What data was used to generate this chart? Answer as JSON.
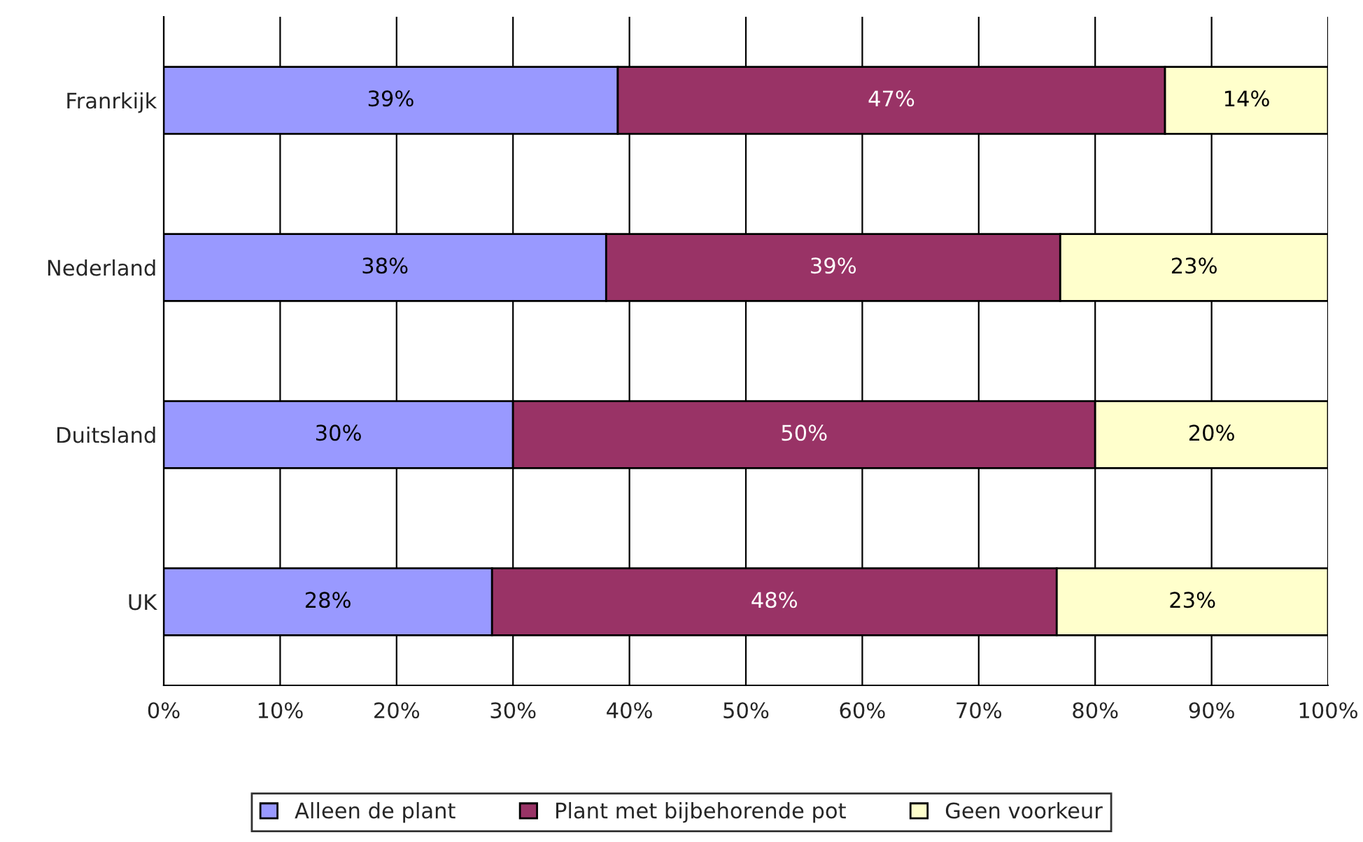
{
  "chart_data": {
    "type": "bar",
    "orientation": "horizontal",
    "stacked": true,
    "categories": [
      "Franrkijk",
      "Nederland",
      "Duitsland",
      "UK"
    ],
    "series": [
      {
        "name": "Alleen de plant",
        "color": "#9999ff",
        "values": [
          39,
          38,
          30,
          28.2
        ],
        "value_labels": [
          "39%",
          "38%",
          "30%",
          "28%"
        ]
      },
      {
        "name": "Plant met bijbehorende pot",
        "color": "#993366",
        "values": [
          47,
          39,
          50,
          48.5
        ],
        "value_labels": [
          "47%",
          "39%",
          "50%",
          "48%"
        ]
      },
      {
        "name": "Geen voorkeur",
        "color": "#ffffcc",
        "values": [
          14,
          23,
          20,
          23.3
        ],
        "value_labels": [
          "14%",
          "23%",
          "20%",
          "23%"
        ]
      }
    ],
    "xlim": [
      0,
      100
    ],
    "xticks": [
      {
        "value": 0,
        "label": "0%"
      },
      {
        "value": 10,
        "label": "10%"
      },
      {
        "value": 20,
        "label": "20%"
      },
      {
        "value": 30,
        "label": "30%"
      },
      {
        "value": 40,
        "label": "40%"
      },
      {
        "value": 50,
        "label": "50%"
      },
      {
        "value": 60,
        "label": "60%"
      },
      {
        "value": 70,
        "label": "70%"
      },
      {
        "value": 80,
        "label": "80%"
      },
      {
        "value": 90,
        "label": "90%"
      },
      {
        "value": 100,
        "label": "100%"
      }
    ],
    "grid": "x",
    "legend": "bottom"
  }
}
